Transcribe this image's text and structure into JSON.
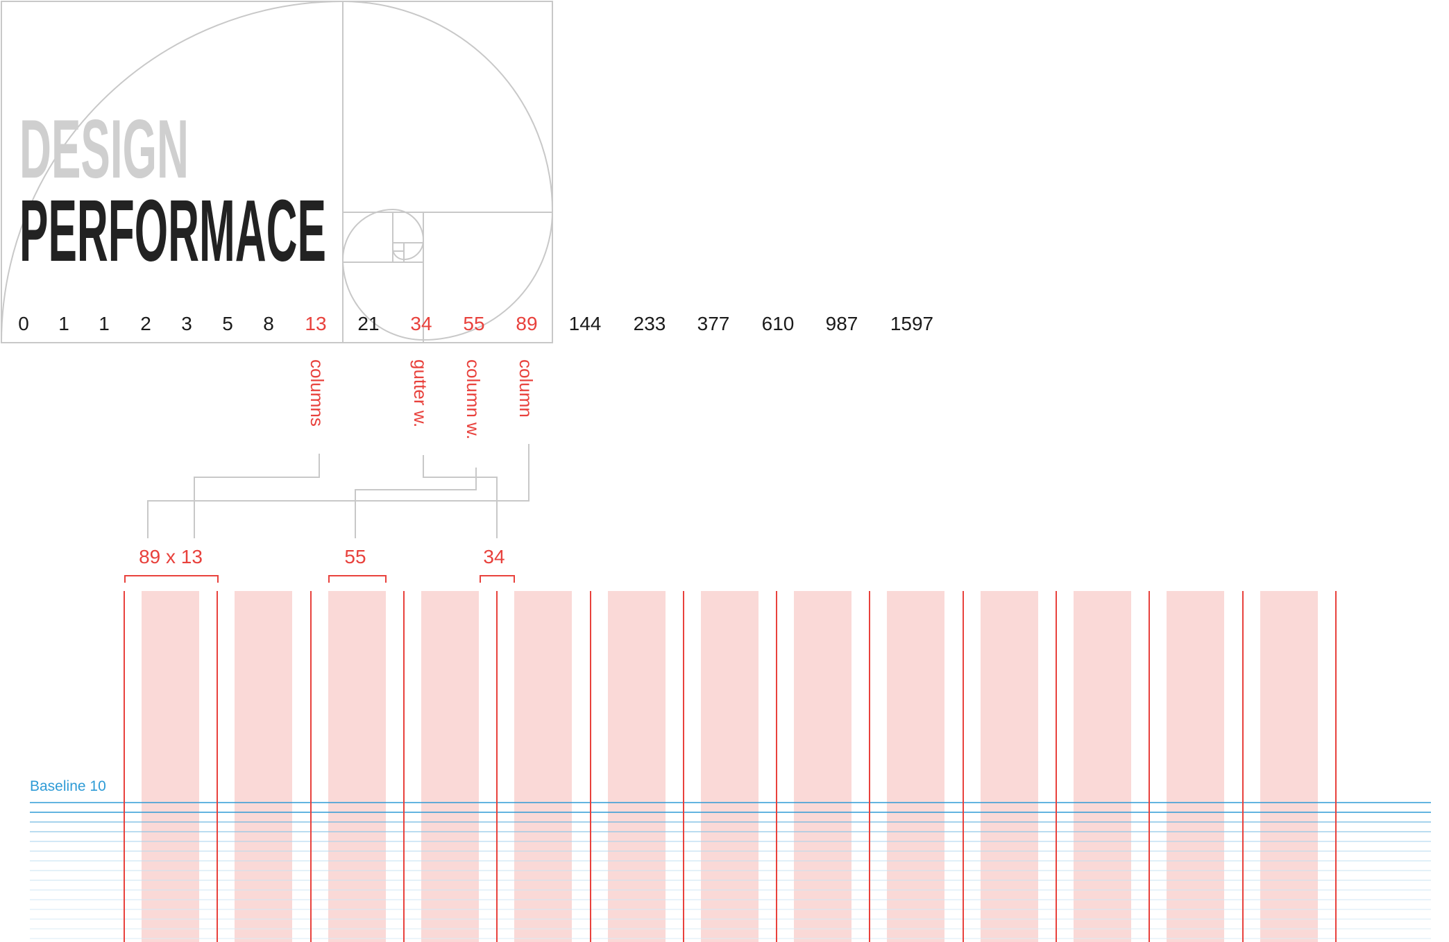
{
  "title": {
    "line1": "DESIGN",
    "line2": "PERFORMACE"
  },
  "sequence": [
    {
      "value": "0",
      "highlight": false
    },
    {
      "value": "1",
      "highlight": false
    },
    {
      "value": "1",
      "highlight": false
    },
    {
      "value": "2",
      "highlight": false
    },
    {
      "value": "3",
      "highlight": false
    },
    {
      "value": "5",
      "highlight": false
    },
    {
      "value": "8",
      "highlight": false
    },
    {
      "value": "13",
      "highlight": true
    },
    {
      "value": "21",
      "highlight": false
    },
    {
      "value": "34",
      "highlight": true
    },
    {
      "value": "55",
      "highlight": true
    },
    {
      "value": "89",
      "highlight": true
    },
    {
      "value": "144",
      "highlight": false
    },
    {
      "value": "233",
      "highlight": false
    },
    {
      "value": "377",
      "highlight": false
    },
    {
      "value": "610",
      "highlight": false
    },
    {
      "value": "987",
      "highlight": false
    },
    {
      "value": "1597",
      "highlight": false
    }
  ],
  "annotations": {
    "columns": "columns",
    "gutter_width": "gutter w.",
    "column_width": "column w.",
    "column": "column"
  },
  "dimensions": {
    "columns_count": "89 x 13",
    "column_width": "55",
    "gutter_width": "34"
  },
  "grid": {
    "column_count": 13
  },
  "baseline": {
    "label": "Baseline 10"
  },
  "colors": {
    "accent_red": "#e8413c",
    "column_fill": "#fad9d7",
    "baseline_blue": "#2e9bd6",
    "baseline_light": "#c9e3f2",
    "spiral_gray": "#c8c8c8",
    "title_gray": "#cfcfcf",
    "title_dark": "#222222",
    "text_dark": "#1a1a1a"
  }
}
